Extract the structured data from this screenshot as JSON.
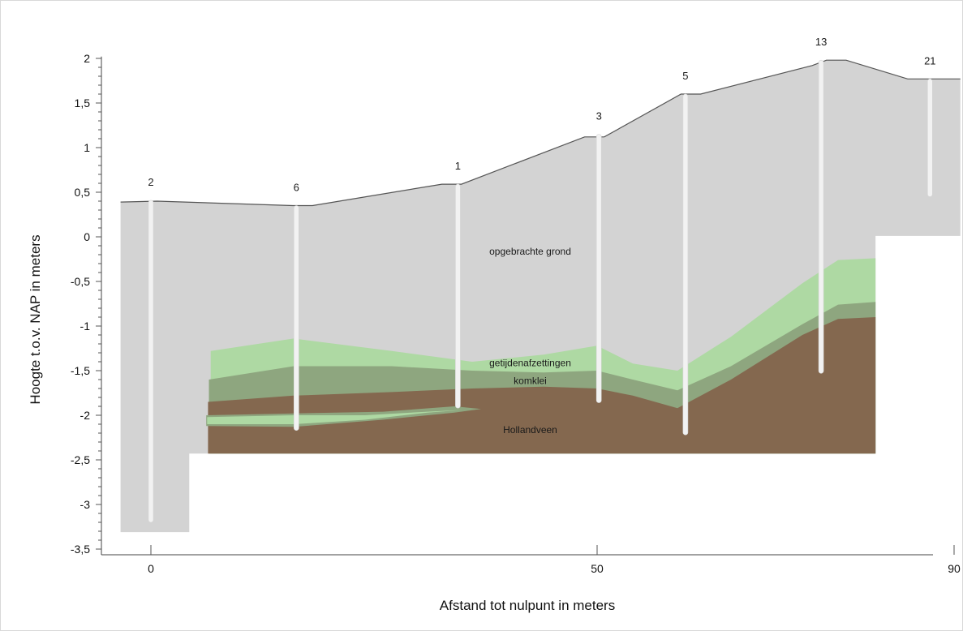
{
  "chart_data": {
    "type": "area",
    "xlabel": "Afstand tot nulpunt in meters",
    "ylabel": "Hoogte t.o.v. NAP in meters",
    "xlim": [
      -7,
      91
    ],
    "ylim": [
      -3.5,
      2
    ],
    "x_ticks": [
      {
        "value": 0,
        "label": "0"
      },
      {
        "value": 50,
        "label": "50"
      },
      {
        "value": 90,
        "label": "90"
      }
    ],
    "y_ticks": [
      {
        "value": 2,
        "label": "2"
      },
      {
        "value": 1.5,
        "label": "1,5"
      },
      {
        "value": 1,
        "label": "1"
      },
      {
        "value": 0.5,
        "label": "0,5"
      },
      {
        "value": 0,
        "label": "0"
      },
      {
        "value": -0.5,
        "label": "-0,5"
      },
      {
        "value": -1,
        "label": "-1"
      },
      {
        "value": -1.5,
        "label": "-1,5"
      },
      {
        "value": -2,
        "label": "-2"
      },
      {
        "value": -2.5,
        "label": "-2,5"
      },
      {
        "value": -3,
        "label": "-3"
      },
      {
        "value": -3.5,
        "label": "-3,5"
      }
    ],
    "surface": {
      "x": [
        -3.4,
        0.7,
        15.9,
        18.1,
        32.6,
        34.8,
        48.6,
        50.8,
        59.4,
        61.6,
        74.1,
        75.7,
        77.9,
        84.8,
        87.3,
        90.7
      ],
      "y": [
        0.39,
        0.4,
        0.35,
        0.35,
        0.59,
        0.59,
        1.12,
        1.12,
        1.6,
        1.6,
        1.92,
        1.98,
        1.98,
        1.77,
        1.77,
        1.77
      ]
    },
    "layers": [
      {
        "name": "opgebrachte grond",
        "color": "#d3d3d3",
        "label_at": {
          "x": 42.5,
          "y": -0.2
        },
        "outline": {
          "x": [
            -3.4,
            0.7,
            15.9,
            18.1,
            32.6,
            34.8,
            48.6,
            50.8,
            59.4,
            61.6,
            74.1,
            75.7,
            77.9,
            84.8,
            87.3,
            90.7,
            90.7,
            81.2,
            81.2,
            6.3,
            6.3,
            4.3,
            4.3,
            -3.4
          ],
          "y": [
            0.39,
            0.4,
            0.35,
            0.35,
            0.59,
            0.59,
            1.12,
            1.12,
            1.6,
            1.6,
            1.92,
            1.98,
            1.98,
            1.77,
            1.77,
            1.77,
            0.01,
            0.01,
            -2.43,
            -2.43,
            -2.43,
            -2.43,
            -3.31,
            -3.31
          ]
        }
      },
      {
        "name": "getijdenafzettingen",
        "color": "#aed9a3",
        "label_at": {
          "x": 42.5,
          "y": -1.45
        },
        "top": {
          "x": [
            6.7,
            16,
            27,
            36,
            44,
            50,
            54,
            59,
            65,
            73,
            77,
            81.2
          ],
          "y": [
            -1.28,
            -1.14,
            -1.28,
            -1.4,
            -1.32,
            -1.22,
            -1.42,
            -1.5,
            -1.12,
            -0.52,
            -0.26,
            -0.24
          ]
        }
      },
      {
        "name": "komklei",
        "color": "#8ea67f",
        "label_at": {
          "x": 42.5,
          "y": -1.65
        },
        "top": {
          "x": [
            6.5,
            16,
            27,
            36,
            44,
            50,
            54,
            59,
            65,
            73,
            77,
            81.2
          ],
          "y": [
            -1.6,
            -1.45,
            -1.45,
            -1.5,
            -1.52,
            -1.5,
            -1.6,
            -1.72,
            -1.45,
            -0.98,
            -0.76,
            -0.73
          ]
        }
      },
      {
        "name": "Hollandveen",
        "color": "#84684f",
        "label_at": {
          "x": 42.5,
          "y": -2.2
        },
        "top": {
          "x": [
            6.4,
            16,
            27,
            36,
            44,
            50,
            54,
            59,
            65,
            73,
            77,
            81.2
          ],
          "y": [
            -1.85,
            -1.78,
            -1.74,
            -1.7,
            -1.68,
            -1.7,
            -1.78,
            -1.92,
            -1.6,
            -1.1,
            -0.92,
            -0.9
          ]
        }
      }
    ],
    "lenses": [
      {
        "color": "#8ea67f",
        "x": [
          6.2,
          16,
          26,
          34,
          37,
          34,
          26,
          16,
          6.2
        ],
        "y": [
          -2.0,
          -1.98,
          -1.96,
          -1.9,
          -1.93,
          -1.97,
          -2.05,
          -2.13,
          -2.12
        ]
      },
      {
        "color": "#aed9a3",
        "x": [
          6.3,
          16,
          24,
          31,
          35,
          31,
          24,
          16,
          6.3
        ],
        "y": [
          -2.02,
          -2.0,
          -2.0,
          -1.96,
          -1.94,
          -1.97,
          -2.05,
          -2.1,
          -2.1
        ]
      }
    ],
    "boreholes": [
      {
        "id": "2",
        "x": 0,
        "top": 0.41,
        "bottom": -3.2
      },
      {
        "id": "6",
        "x": 16.3,
        "top": 0.35,
        "bottom": -2.17
      },
      {
        "id": "1",
        "x": 34.4,
        "top": 0.59,
        "bottom": -1.92
      },
      {
        "id": "3",
        "x": 50.2,
        "top": 1.15,
        "bottom": -1.86
      },
      {
        "id": "5",
        "x": 59.9,
        "top": 1.6,
        "bottom": -2.22
      },
      {
        "id": "13",
        "x": 75.1,
        "top": 1.98,
        "bottom": -1.53
      },
      {
        "id": "21",
        "x": 87.3,
        "top": 1.77,
        "bottom": 0.45
      }
    ]
  }
}
